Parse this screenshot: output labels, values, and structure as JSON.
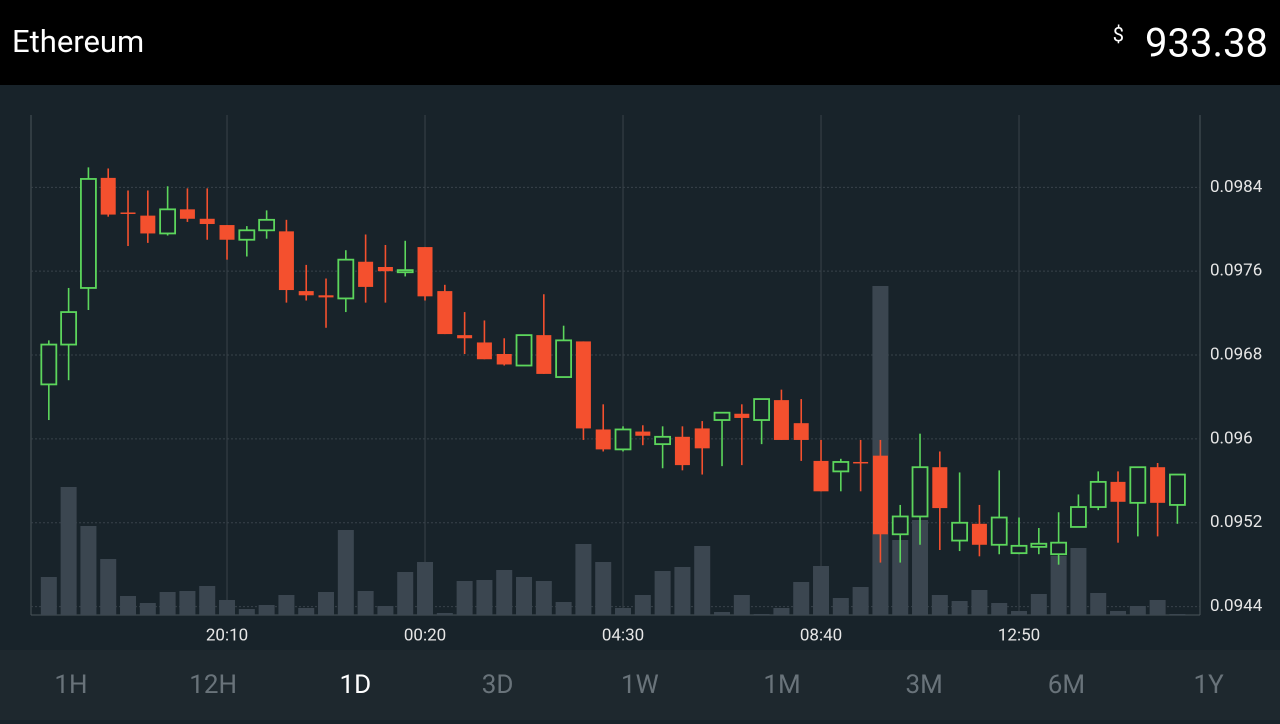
{
  "header": {
    "title": "Ethereum",
    "currency": "$",
    "price": "933.38"
  },
  "chart_data": {
    "type": "candlestick",
    "categories": [
      null,
      null,
      null,
      null,
      null,
      null,
      null,
      null,
      null,
      "20:10",
      null,
      null,
      null,
      null,
      null,
      null,
      null,
      null,
      null,
      "00:20",
      null,
      null,
      null,
      null,
      null,
      null,
      null,
      null,
      null,
      "04:30",
      null,
      null,
      null,
      null,
      null,
      null,
      null,
      null,
      null,
      "08:40",
      null,
      null,
      null,
      null,
      null,
      null,
      null,
      null,
      null,
      "12:50",
      null,
      null,
      null,
      null,
      null,
      null,
      null,
      null
    ],
    "open": [
      0.09652,
      0.0969,
      0.09744,
      0.09849,
      0.09816,
      0.09813,
      0.09796,
      0.09819,
      0.0981,
      0.09804,
      0.0979,
      0.09799,
      0.09798,
      0.09741,
      0.09737,
      0.09734,
      0.09769,
      0.09764,
      0.09759,
      0.09783,
      0.09741,
      0.09699,
      0.09692,
      0.09681,
      0.0967,
      0.09699,
      0.09659,
      0.09693,
      0.09609,
      0.0959,
      0.09607,
      0.09595,
      0.09602,
      0.0961,
      0.09618,
      0.09624,
      0.09618,
      0.09637,
      0.09615,
      0.09579,
      0.09569,
      0.09578,
      0.09584,
      0.09509,
      0.09526,
      0.09573,
      0.09503,
      0.09519,
      0.09499,
      0.09491,
      0.09497,
      0.0949,
      0.09516,
      0.09535,
      0.09559,
      0.09539,
      0.09573,
      0.09537
    ],
    "high": [
      0.09694,
      0.09744,
      0.09859,
      0.09858,
      0.09837,
      0.09837,
      0.09841,
      0.09839,
      0.09839,
      0.09804,
      0.09803,
      0.09818,
      0.09809,
      0.09766,
      0.09753,
      0.0978,
      0.09795,
      0.09785,
      0.09789,
      0.09783,
      0.09747,
      0.09721,
      0.09713,
      0.09696,
      0.09699,
      0.09738,
      0.09708,
      0.09693,
      0.09633,
      0.09612,
      0.09613,
      0.09612,
      0.09612,
      0.09617,
      0.09625,
      0.09633,
      0.09638,
      0.09647,
      0.09638,
      0.09599,
      0.09581,
      0.09599,
      0.09599,
      0.09537,
      0.09605,
      0.09588,
      0.09568,
      0.09537,
      0.0957,
      0.09525,
      0.09515,
      0.0953,
      0.09547,
      0.09569,
      0.09569,
      0.09573,
      0.09577,
      0.09566
    ],
    "low": [
      0.09618,
      0.09656,
      0.09723,
      0.09812,
      0.09784,
      0.09787,
      0.09794,
      0.09807,
      0.0979,
      0.09771,
      0.09774,
      0.09791,
      0.0973,
      0.09732,
      0.09706,
      0.09721,
      0.0973,
      0.0973,
      0.09755,
      0.09732,
      0.097,
      0.09681,
      0.09676,
      0.0967,
      0.0967,
      0.09662,
      0.09659,
      0.09599,
      0.09588,
      0.09588,
      0.09594,
      0.09572,
      0.0957,
      0.09566,
      0.09574,
      0.09575,
      0.09595,
      0.09599,
      0.09579,
      0.0955,
      0.0955,
      0.0955,
      0.09482,
      0.09482,
      0.09499,
      0.09494,
      0.09493,
      0.09488,
      0.0949,
      0.0949,
      0.0949,
      0.0948,
      0.09516,
      0.09532,
      0.09501,
      0.09507,
      0.09507,
      0.09519
    ],
    "close": [
      0.0969,
      0.09721,
      0.09848,
      0.09814,
      0.09815,
      0.09796,
      0.09819,
      0.0981,
      0.09805,
      0.0979,
      0.09799,
      0.09809,
      0.09742,
      0.09737,
      0.09735,
      0.09771,
      0.09745,
      0.0976,
      0.09761,
      0.09736,
      0.097,
      0.09696,
      0.09676,
      0.09671,
      0.09699,
      0.09662,
      0.09694,
      0.0961,
      0.0959,
      0.09609,
      0.09603,
      0.09602,
      0.09575,
      0.09591,
      0.09625,
      0.0962,
      0.09638,
      0.09599,
      0.09599,
      0.0955,
      0.09578,
      0.09577,
      0.09509,
      0.09526,
      0.09573,
      0.09534,
      0.0952,
      0.09499,
      0.09525,
      0.09498,
      0.095,
      0.09501,
      0.09535,
      0.09559,
      0.0954,
      0.09573,
      0.09539,
      0.09566
    ],
    "volume": [
      38,
      128,
      89,
      56,
      19,
      12,
      23,
      24,
      29,
      15,
      6,
      10,
      20,
      7,
      23,
      85,
      24,
      9,
      43,
      53,
      2,
      34,
      35,
      45,
      38,
      34,
      13,
      71,
      53,
      7,
      20,
      44,
      48,
      69,
      3,
      20,
      1,
      7,
      33,
      49,
      17,
      28,
      329,
      75,
      95,
      20,
      14,
      25,
      12,
      4,
      21,
      59,
      67,
      22,
      4,
      9,
      15,
      1
    ],
    "ylim": [
      0.09432,
      0.09909
    ],
    "yticks": [
      0.0944,
      0.0952,
      0.096,
      0.0968,
      0.0976,
      0.0984
    ],
    "up_color": "#5cd65c",
    "down_color": "#f4502e",
    "volume_color": "#3b4650",
    "grid": true
  },
  "tabs": {
    "items": [
      "1H",
      "12H",
      "1D",
      "3D",
      "1W",
      "1M",
      "3M",
      "6M",
      "1Y"
    ],
    "selected": 2
  }
}
